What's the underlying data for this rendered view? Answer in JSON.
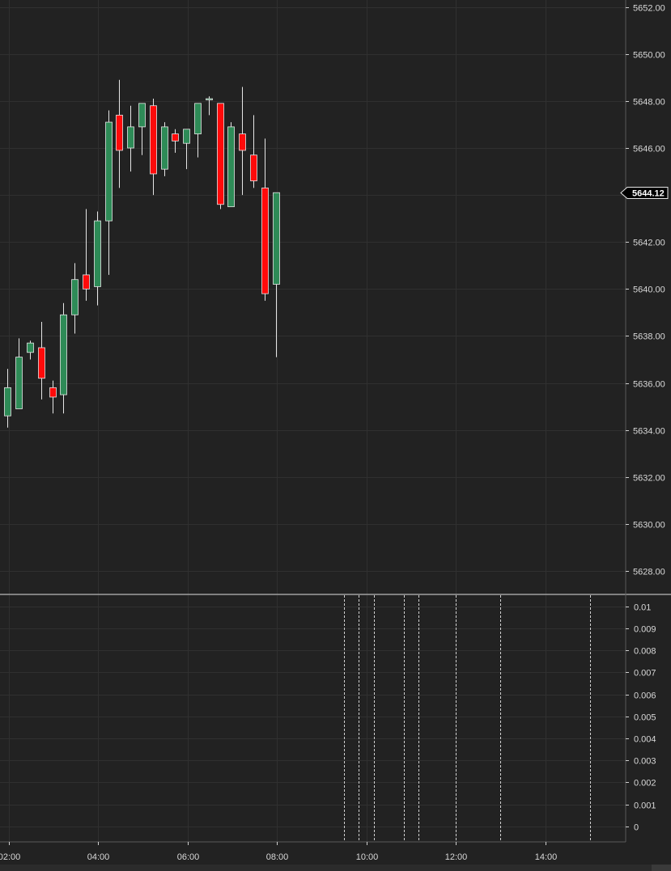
{
  "colors": {
    "background": "#222222",
    "grid": "#303030",
    "axis": "#cfcfcf",
    "up": "#2e8b57",
    "down": "#ff0a0a",
    "wick": "#e6e6e6",
    "last_price_bg": "#000000",
    "last_price_border": "#e6e6e6",
    "marker_line": "#d0d0d0"
  },
  "chart_data": [
    {
      "type": "candlestick",
      "title": "",
      "ylim": [
        5627,
        5652.3
      ],
      "y_ticks": [
        "5652.00",
        "5650.00",
        "5648.00",
        "5646.00",
        "5644.00",
        "5642.00",
        "5640.00",
        "5638.00",
        "5636.00",
        "5634.00",
        "5632.00",
        "5630.00",
        "5628.00"
      ],
      "y_tick_values": [
        5652,
        5650,
        5648,
        5646,
        5644,
        5642,
        5640,
        5638,
        5636,
        5634,
        5632,
        5630,
        5628
      ],
      "last_price": {
        "value": 5644.12,
        "label": "5644.12"
      },
      "x_ticks": [
        "02:00",
        "04:00",
        "06:00",
        "08:00",
        "10:00",
        "12:00",
        "14:00"
      ],
      "x_tick_hours": [
        2,
        4,
        6,
        8,
        10,
        12,
        14
      ],
      "x_range_hours": [
        1.8,
        15.8
      ],
      "grid": true,
      "candles": [
        {
          "t": 1.97,
          "o": 5634.6,
          "h": 5636.6,
          "l": 5634.1,
          "c": 5635.8
        },
        {
          "t": 2.22,
          "o": 5634.9,
          "h": 5637.9,
          "l": 5634.9,
          "c": 5637.1
        },
        {
          "t": 2.47,
          "o": 5637.3,
          "h": 5637.8,
          "l": 5637.0,
          "c": 5637.7
        },
        {
          "t": 2.72,
          "o": 5637.5,
          "h": 5638.6,
          "l": 5635.3,
          "c": 5636.2
        },
        {
          "t": 2.97,
          "o": 5635.8,
          "h": 5636.1,
          "l": 5634.7,
          "c": 5635.4
        },
        {
          "t": 3.22,
          "o": 5635.5,
          "h": 5639.4,
          "l": 5634.7,
          "c": 5638.9
        },
        {
          "t": 3.47,
          "o": 5638.9,
          "h": 5641.1,
          "l": 5638.1,
          "c": 5640.4
        },
        {
          "t": 3.72,
          "o": 5640.6,
          "h": 5643.4,
          "l": 5639.5,
          "c": 5640.0
        },
        {
          "t": 3.97,
          "o": 5640.1,
          "h": 5643.3,
          "l": 5639.3,
          "c": 5642.9
        },
        {
          "t": 4.22,
          "o": 5642.9,
          "h": 5647.6,
          "l": 5640.6,
          "c": 5647.1
        },
        {
          "t": 4.47,
          "o": 5647.4,
          "h": 5648.9,
          "l": 5644.3,
          "c": 5645.9
        },
        {
          "t": 4.72,
          "o": 5646.0,
          "h": 5647.8,
          "l": 5645.0,
          "c": 5646.9
        },
        {
          "t": 4.97,
          "o": 5646.9,
          "h": 5647.9,
          "l": 5645.7,
          "c": 5647.9
        },
        {
          "t": 5.22,
          "o": 5647.8,
          "h": 5648.1,
          "l": 5644.0,
          "c": 5644.9
        },
        {
          "t": 5.47,
          "o": 5645.1,
          "h": 5647.1,
          "l": 5644.8,
          "c": 5646.9
        },
        {
          "t": 5.72,
          "o": 5646.6,
          "h": 5646.8,
          "l": 5645.8,
          "c": 5646.3
        },
        {
          "t": 5.97,
          "o": 5646.2,
          "h": 5646.8,
          "l": 5645.1,
          "c": 5646.8
        },
        {
          "t": 6.22,
          "o": 5646.6,
          "h": 5647.9,
          "l": 5645.6,
          "c": 5647.9
        },
        {
          "t": 6.47,
          "o": 5648.1,
          "h": 5648.2,
          "l": 5647.4,
          "c": 5648.1
        },
        {
          "t": 6.72,
          "o": 5647.9,
          "h": 5647.9,
          "l": 5643.4,
          "c": 5643.6
        },
        {
          "t": 6.97,
          "o": 5643.5,
          "h": 5647.1,
          "l": 5643.5,
          "c": 5646.9
        },
        {
          "t": 7.22,
          "o": 5646.6,
          "h": 5648.6,
          "l": 5644.0,
          "c": 5645.9
        },
        {
          "t": 7.47,
          "o": 5645.7,
          "h": 5647.4,
          "l": 5644.3,
          "c": 5644.6
        },
        {
          "t": 7.72,
          "o": 5644.3,
          "h": 5646.4,
          "l": 5639.5,
          "c": 5639.8
        },
        {
          "t": 7.97,
          "o": 5640.2,
          "h": 5644.1,
          "l": 5637.1,
          "c": 5644.1
        }
      ]
    },
    {
      "type": "line",
      "title": "",
      "ylim": [
        -0.0007,
        0.0105
      ],
      "y_ticks": [
        "0.01",
        "0.009",
        "0.008",
        "0.007",
        "0.006",
        "0.005",
        "0.004",
        "0.003",
        "0.002",
        "0.001",
        "0"
      ],
      "y_tick_values": [
        0.01,
        0.009,
        0.008,
        0.007,
        0.006,
        0.005,
        0.004,
        0.003,
        0.002,
        0.001,
        0
      ],
      "grid": true,
      "marker_hours": [
        9.5,
        9.83,
        10.17,
        10.83,
        11.17,
        12.0,
        13.0,
        15.0
      ]
    }
  ]
}
